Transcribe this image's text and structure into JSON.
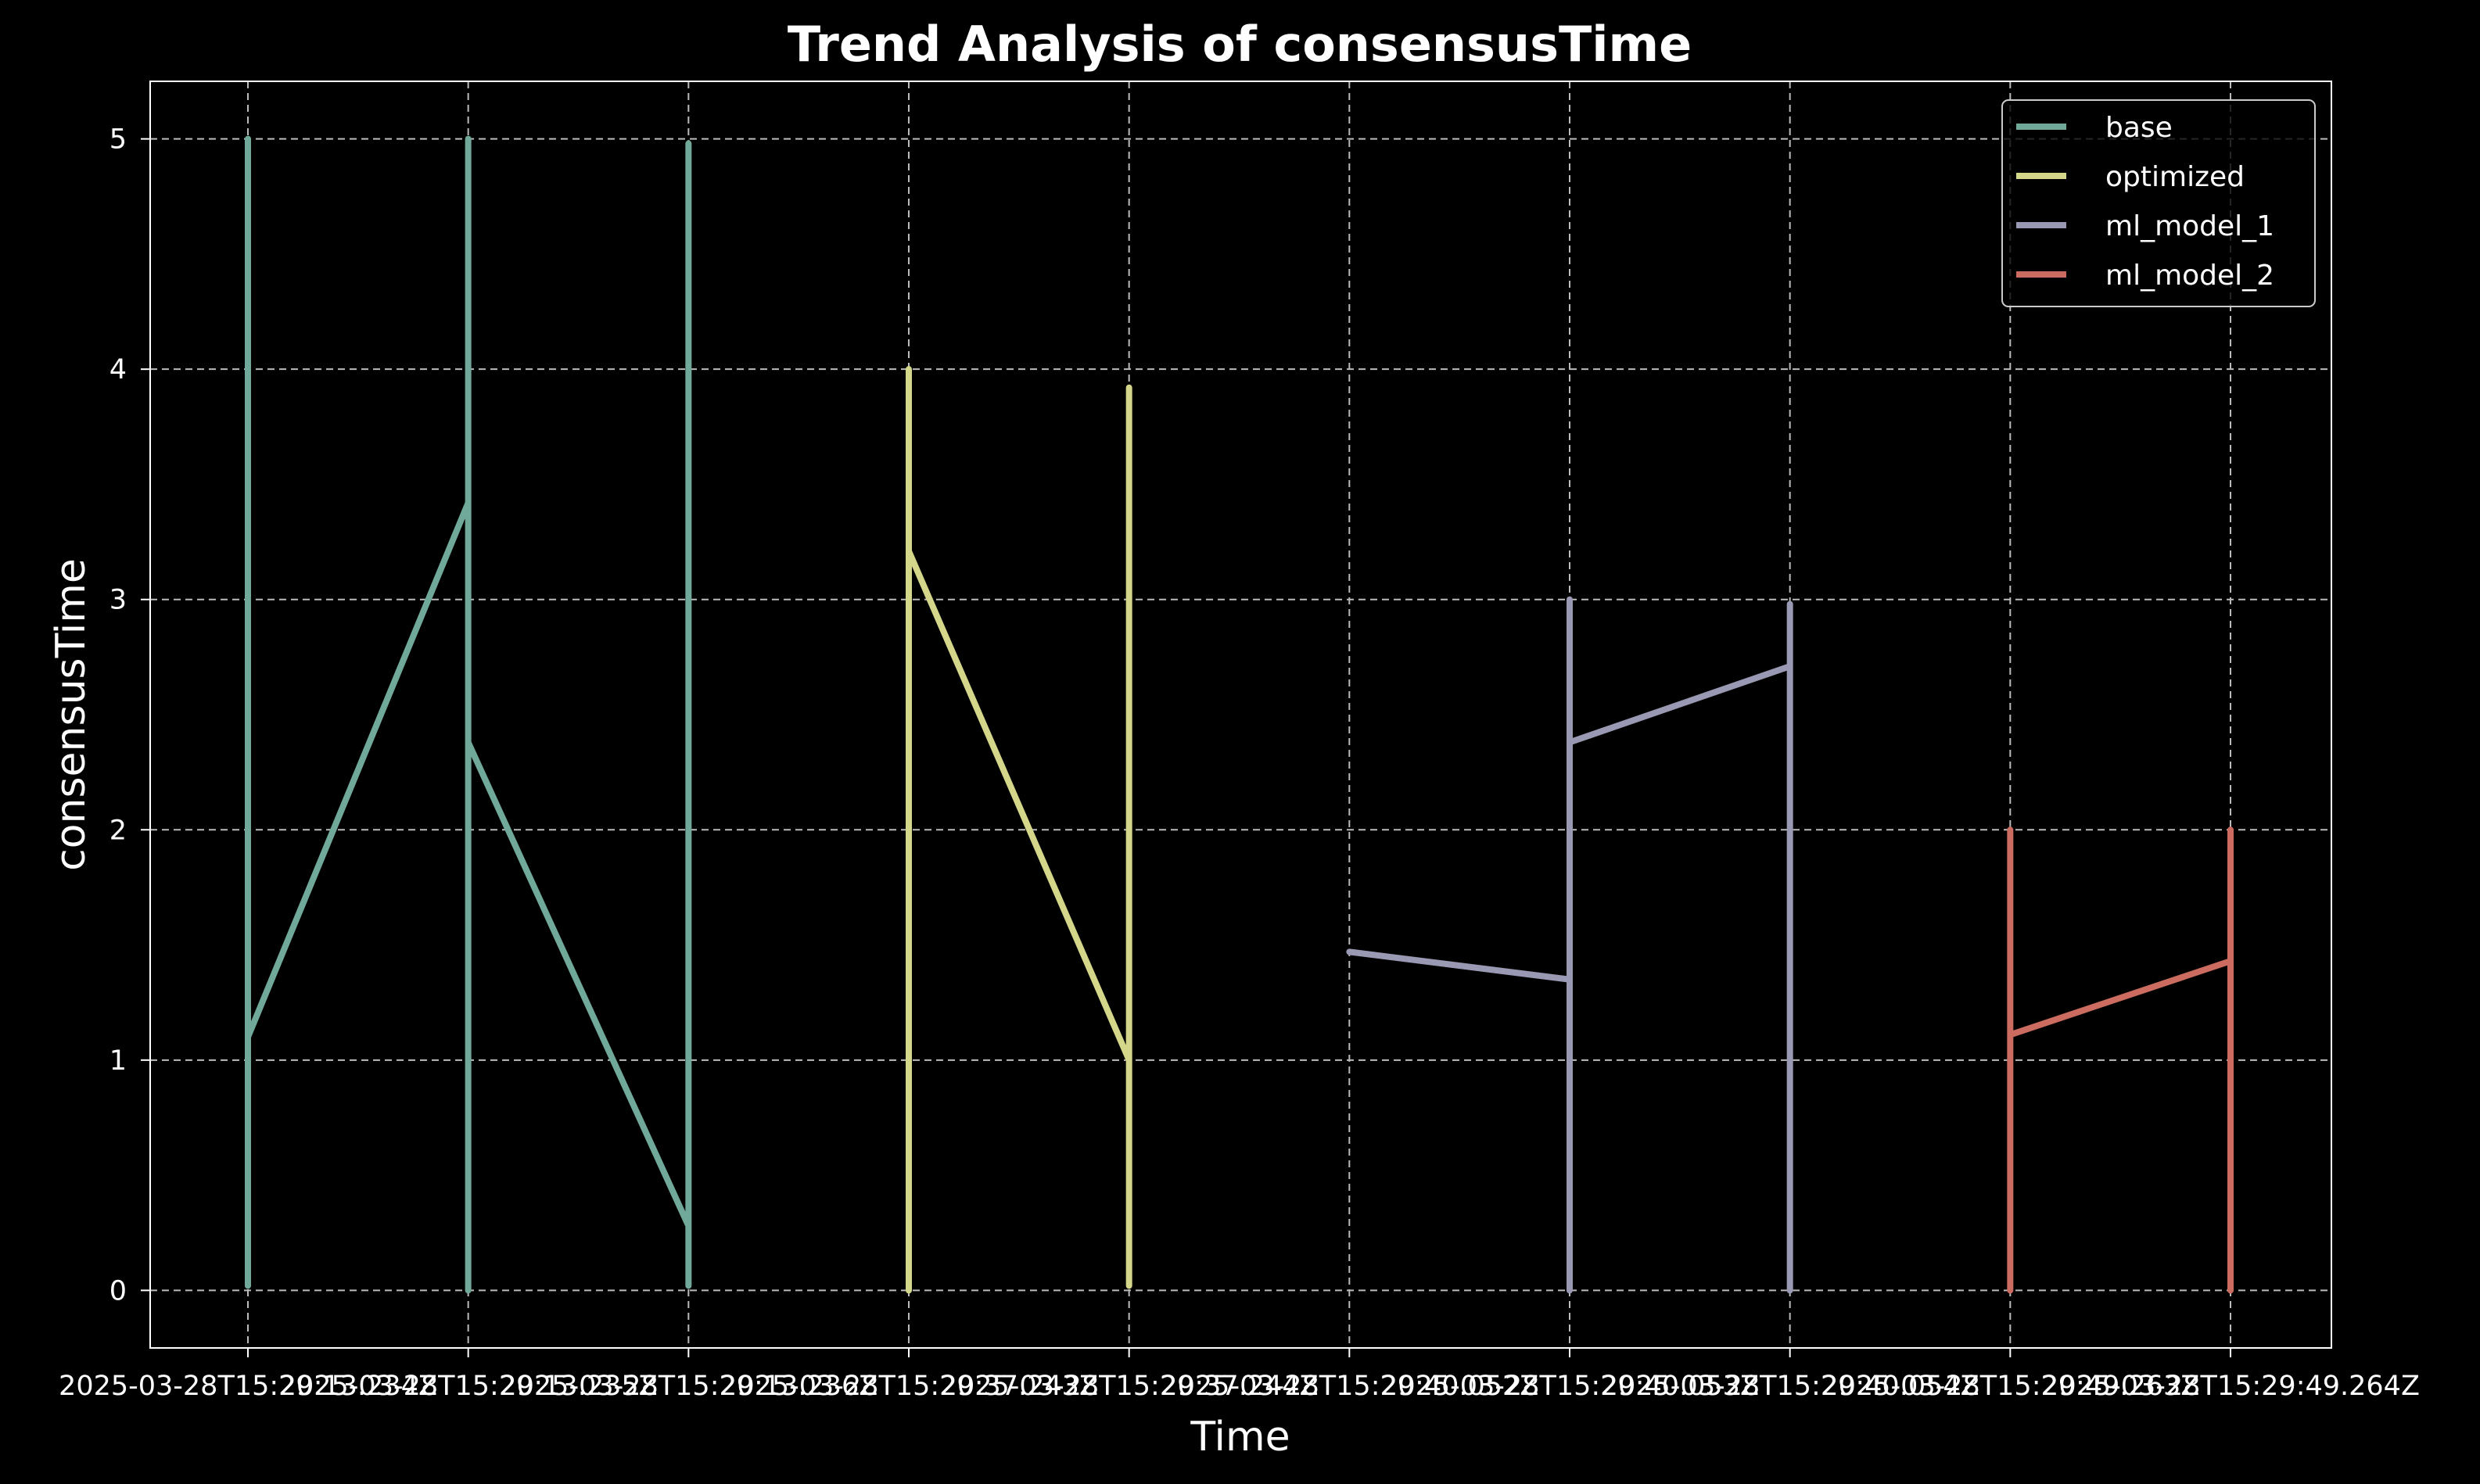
{
  "chart_data": {
    "type": "line",
    "title": "Trend Analysis of consensusTime",
    "xlabel": "Time",
    "ylabel": "consensusTime",
    "ylim": [
      -0.25,
      5.25
    ],
    "yticks": [
      0,
      1,
      2,
      3,
      4,
      5
    ],
    "grid": true,
    "legend_position": "top-right",
    "x": [
      "2025-03-28T15:29:13.234Z",
      "2025-03-28T15:29:13.235Z",
      "2025-03-28T15:29:13.236Z",
      "2025-03-28T15:29:37.243Z",
      "2025-03-28T15:29:37.244Z",
      "2025-03-28T15:29:40.052Z",
      "2025-03-28T15:29:40.053Z",
      "2025-03-28T15:29:40.054Z",
      "2025-03-28T15:29:49.263Z",
      "2025-03-28T15:29:49.264Z"
    ],
    "series": [
      {
        "name": "base",
        "color": "#70a89a",
        "points": [
          [
            0,
            0.02
          ],
          [
            0,
            5
          ],
          [
            0,
            1.1
          ],
          [
            1,
            3.42
          ],
          [
            1,
            0
          ],
          [
            1,
            5
          ],
          [
            1,
            2.38
          ],
          [
            2,
            0.28
          ],
          [
            2,
            0.02
          ],
          [
            2,
            4.98
          ]
        ]
      },
      {
        "name": "optimized",
        "color": "#d4d68a",
        "points": [
          [
            3,
            0
          ],
          [
            3,
            4
          ],
          [
            3,
            3.21
          ],
          [
            4,
            1.0
          ],
          [
            4,
            0.02
          ],
          [
            4,
            3.92
          ]
        ]
      },
      {
        "name": "ml_model_1",
        "color": "#9a99b3",
        "points": [
          [
            5,
            1.47
          ],
          [
            6,
            1.35
          ],
          [
            6,
            0
          ],
          [
            6,
            3
          ],
          [
            6,
            2.38
          ],
          [
            7,
            2.71
          ],
          [
            7,
            0
          ],
          [
            7,
            2.98
          ]
        ]
      },
      {
        "name": "ml_model_2",
        "color": "#cc6b5f",
        "points": [
          [
            8,
            0
          ],
          [
            8,
            2
          ],
          [
            8,
            1.11
          ],
          [
            9,
            1.43
          ],
          [
            9,
            0
          ],
          [
            9,
            2
          ]
        ]
      }
    ]
  }
}
